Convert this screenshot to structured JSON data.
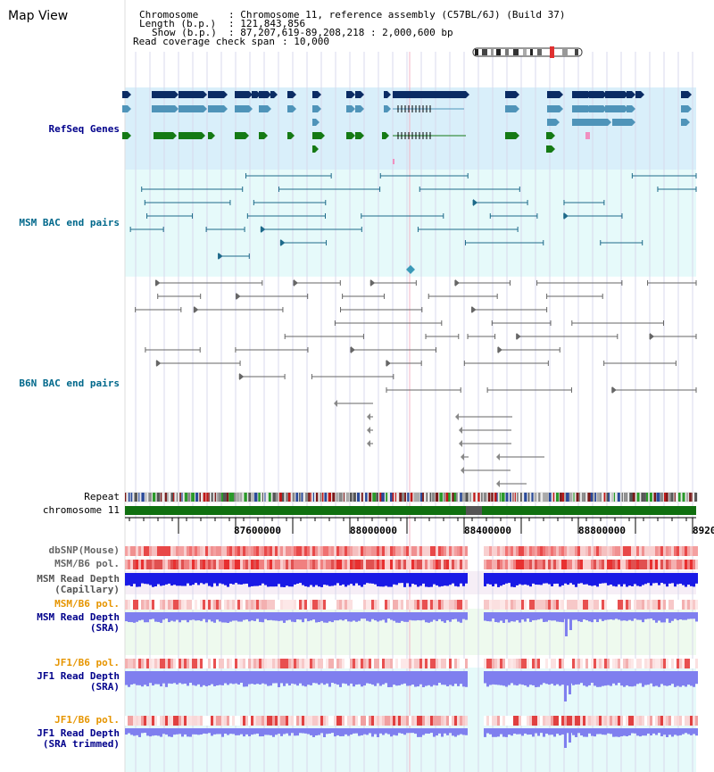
{
  "title": "Map View",
  "info": {
    "chromosome_key": "Chromosome",
    "chromosome_val": ": Chromosome 11, reference assembly (C57BL/6J) (Build 37)",
    "length_key": "Length (b.p.)",
    "length_val": ": 121,843,856",
    "show_key": "Show (b.p.)",
    "show_val": ": 87,207,619-89,208,218 : 2,000,600 bp",
    "coverage_key": "Read coverage check span",
    "coverage_val": ": 10,000"
  },
  "tracks": {
    "refseq": "RefSeq Genes",
    "msm_bac": "MSM BAC end pairs",
    "b6n_bac": "B6N BAC end pairs",
    "repeat": "Repeat",
    "chromosome": "chromosome 11",
    "dbsnp": "dbSNP(Mouse)",
    "msm_b6_pol": "MSM/B6 pol.",
    "msm_depth_cap_1": "MSM Read Depth",
    "msm_depth_cap_2": "(Capillary)",
    "msm_b6_pol2": "MSM/B6 pol.",
    "msm_depth_sra_1": "MSM Read Depth",
    "msm_depth_sra_2": "(SRA)",
    "jf1_b6_pol": "JF1/B6 pol.",
    "jf1_depth_sra_1": "JF1 Read Depth",
    "jf1_depth_sra_2": "(SRA)",
    "jf1_b6_pol2": "JF1/B6 pol.",
    "jf1_depth_trim_1": "JF1 Read Depth",
    "jf1_depth_trim_2": "(SRA trimmed)"
  },
  "axis_ticks": [
    "87600000",
    "88000000",
    "88400000",
    "88800000",
    "8920"
  ],
  "colors": {
    "label_blue": "#00008b",
    "label_teal": "#00688b",
    "label_orange": "#e69500",
    "refseq_bg": "#d9effa",
    "bac_bg": "#e6fafa",
    "gene_navy": "#0b2c64",
    "gene_steel": "#4f94b9",
    "gene_green": "#157a15",
    "depth_blue": "#1a1ae6",
    "depth_light": "#7f7fef",
    "chrom_green": "#107010"
  }
}
